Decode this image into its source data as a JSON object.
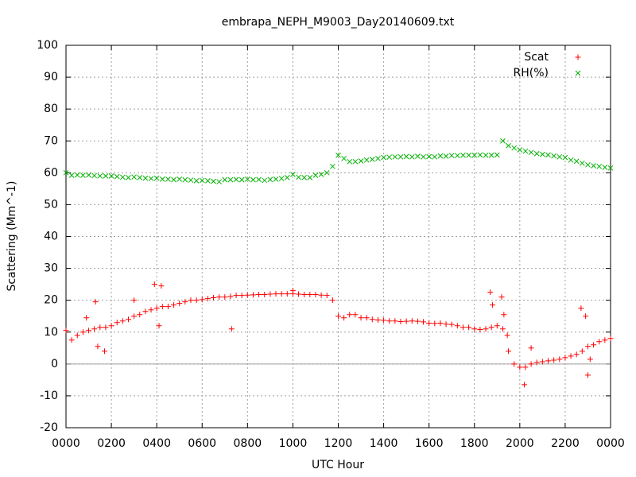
{
  "chart_data": {
    "type": "scatter",
    "title": "embrapa_NEPH_M9003_Day20140609.txt",
    "x_label": "UTC Hour",
    "y_label": "Scattering (Mm^-1)",
    "xlim": [
      0,
      24
    ],
    "ylim": [
      -20,
      100
    ],
    "xticks": [
      {
        "value": 0,
        "label": "0000"
      },
      {
        "value": 2,
        "label": "0200"
      },
      {
        "value": 4,
        "label": "0400"
      },
      {
        "value": 6,
        "label": "0600"
      },
      {
        "value": 8,
        "label": "0800"
      },
      {
        "value": 10,
        "label": "1000"
      },
      {
        "value": 12,
        "label": "1200"
      },
      {
        "value": 14,
        "label": "1400"
      },
      {
        "value": 16,
        "label": "1600"
      },
      {
        "value": 18,
        "label": "1800"
      },
      {
        "value": 20,
        "label": "2000"
      },
      {
        "value": 22,
        "label": "2200"
      },
      {
        "value": 24,
        "label": "0000"
      }
    ],
    "yticks": [
      -20,
      -10,
      0,
      10,
      20,
      30,
      40,
      50,
      60,
      70,
      80,
      90,
      100
    ],
    "grid": true,
    "legend": "top-right",
    "series": [
      {
        "name": "Scat",
        "color": "#ff0000",
        "marker": "plus",
        "x": [
          0,
          0.25,
          0.5,
          0.75,
          1,
          1.25,
          1.5,
          1.75,
          2,
          2.25,
          2.5,
          2.75,
          3,
          3.25,
          3.5,
          3.75,
          4,
          4.25,
          4.5,
          4.75,
          5,
          5.25,
          5.5,
          5.75,
          6,
          6.25,
          6.5,
          6.75,
          7,
          7.25,
          7.5,
          7.75,
          8,
          8.25,
          8.5,
          8.75,
          9,
          9.25,
          9.5,
          9.75,
          10,
          10.25,
          10.5,
          10.75,
          11,
          11.25,
          11.5,
          11.75,
          12,
          12.25,
          12.5,
          12.75,
          13,
          13.25,
          13.5,
          13.75,
          14,
          14.25,
          14.5,
          14.75,
          15,
          15.25,
          15.5,
          15.75,
          16,
          16.25,
          16.5,
          16.75,
          17,
          17.25,
          17.5,
          17.75,
          18,
          18.25,
          18.5,
          18.75,
          19,
          19.25,
          19.5,
          19.75,
          20,
          20.25,
          20.5,
          20.75,
          21,
          21.25,
          21.5,
          21.75,
          22,
          22.25,
          22.5,
          22.75,
          23,
          23.25,
          23.5,
          23.75,
          24,
          0.9,
          1.3,
          1.4,
          1.7,
          3.0,
          3.9,
          4.2,
          4.1,
          7.3,
          10.0,
          18.7,
          18.8,
          19.2,
          19.3,
          19.45,
          20.2,
          20.5,
          22.7,
          22.9,
          23.0,
          23.1
        ],
        "values": [
          10.5,
          7.5,
          9,
          10,
          10.5,
          11,
          11.5,
          11.5,
          12,
          13,
          13.5,
          14,
          15,
          15.5,
          16.5,
          17,
          17.5,
          18,
          18,
          18.5,
          19,
          19.5,
          20,
          20,
          20.2,
          20.5,
          20.8,
          21,
          21,
          21.2,
          21.5,
          21.5,
          21.6,
          21.7,
          21.8,
          21.8,
          21.9,
          22,
          22,
          22,
          22,
          21.9,
          21.8,
          21.8,
          21.8,
          21.6,
          21.5,
          20,
          15,
          14.5,
          15.5,
          15.5,
          14.5,
          14.5,
          14,
          13.8,
          13.7,
          13.5,
          13.5,
          13.3,
          13.4,
          13.5,
          13.4,
          13.2,
          12.8,
          12.7,
          12.8,
          12.5,
          12.4,
          12,
          11.5,
          11.5,
          11,
          10.8,
          11,
          11.5,
          12,
          11,
          4,
          0,
          -1,
          -1,
          0,
          0.5,
          0.7,
          1,
          1.2,
          1.5,
          2,
          2.5,
          3,
          4,
          5.5,
          6,
          7,
          7.5,
          8,
          14.5,
          19.5,
          5.5,
          4,
          20,
          25,
          24.5,
          12,
          11,
          23,
          22.5,
          18.5,
          21,
          15.5,
          9,
          -6.5,
          5,
          17.5,
          15,
          -3.5,
          1.5
        ]
      },
      {
        "name": "RH(%)",
        "color": "#00b000",
        "marker": "cross",
        "x": [
          0,
          0.25,
          0.5,
          0.75,
          1,
          1.25,
          1.5,
          1.75,
          2,
          2.25,
          2.5,
          2.75,
          3,
          3.25,
          3.5,
          3.75,
          4,
          4.25,
          4.5,
          4.75,
          5,
          5.25,
          5.5,
          5.75,
          6,
          6.25,
          6.5,
          6.75,
          7,
          7.25,
          7.5,
          7.75,
          8,
          8.25,
          8.5,
          8.75,
          9,
          9.25,
          9.5,
          9.75,
          10,
          10.25,
          10.5,
          10.75,
          11,
          11.25,
          11.5,
          11.75,
          12,
          12.25,
          12.5,
          12.75,
          13,
          13.25,
          13.5,
          13.75,
          14,
          14.25,
          14.5,
          14.75,
          15,
          15.25,
          15.5,
          15.75,
          16,
          16.25,
          16.5,
          16.75,
          17,
          17.25,
          17.5,
          17.75,
          18,
          18.25,
          18.5,
          18.75,
          19,
          19.25,
          19.5,
          19.75,
          20,
          20.25,
          20.5,
          20.75,
          21,
          21.25,
          21.5,
          21.75,
          22,
          22.25,
          22.5,
          22.75,
          23,
          23.25,
          23.5,
          23.75,
          24
        ],
        "values": [
          60,
          59.2,
          59.3,
          59.2,
          59.3,
          59.1,
          59,
          59,
          59,
          58.8,
          58.6,
          58.5,
          58.7,
          58.5,
          58.3,
          58.2,
          58.3,
          58,
          58,
          57.8,
          58,
          57.8,
          57.7,
          57.5,
          57.6,
          57.5,
          57.3,
          57.2,
          57.8,
          57.8,
          57.9,
          57.8,
          58,
          57.8,
          57.9,
          57.6,
          57.9,
          58,
          58.2,
          58.5,
          59.5,
          58.6,
          58.5,
          58.5,
          59.2,
          59.5,
          60,
          62,
          65.5,
          64.5,
          63.5,
          63.5,
          63.7,
          64,
          64.2,
          64.5,
          64.8,
          64.9,
          65,
          65,
          65.1,
          65,
          65.2,
          65,
          65.1,
          65,
          65.3,
          65.2,
          65.4,
          65.4,
          65.5,
          65.5,
          65.5,
          65.6,
          65.5,
          65.5,
          65.6,
          70,
          68.5,
          67.8,
          67.2,
          66.8,
          66.4,
          66,
          65.8,
          65.6,
          65.3,
          65,
          64.8,
          64,
          63.6,
          63,
          62.5,
          62.2,
          62,
          61.7,
          61.5
        ]
      }
    ]
  }
}
